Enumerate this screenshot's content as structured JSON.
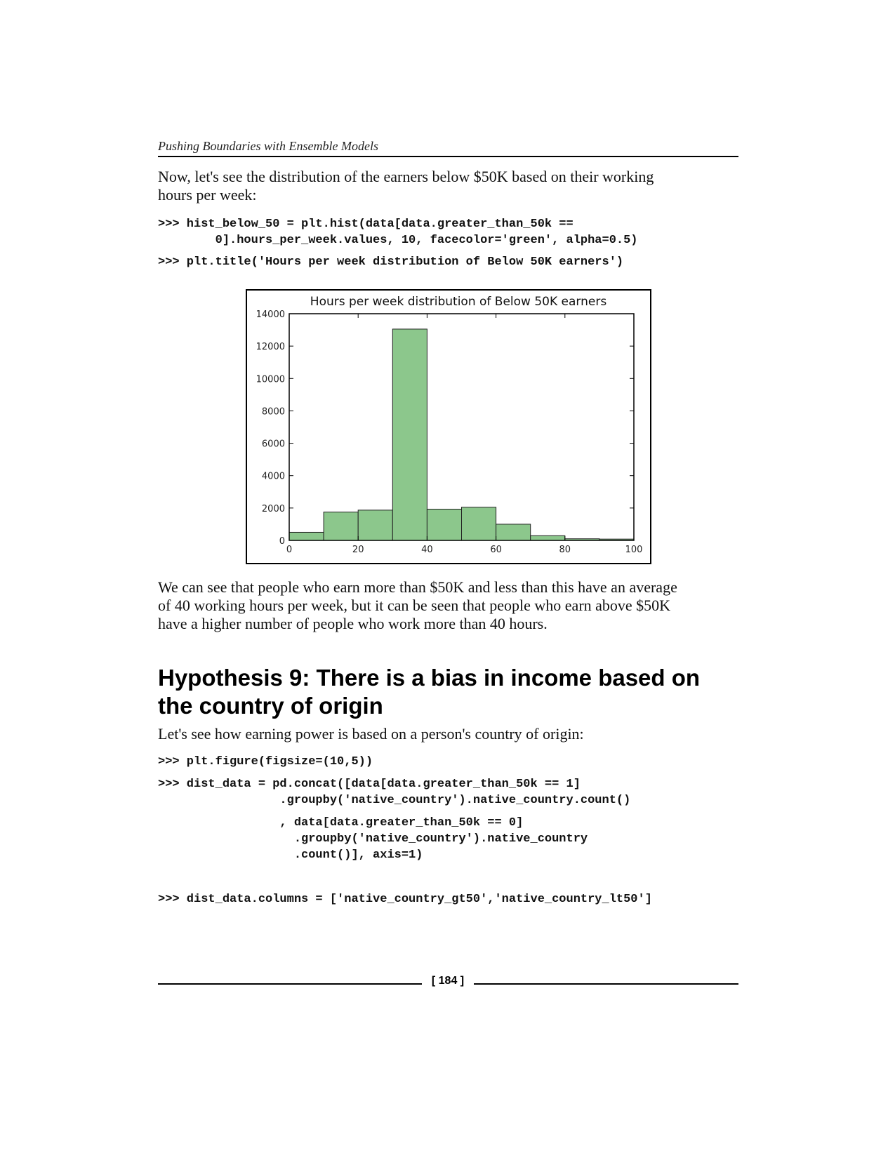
{
  "header": {
    "running_title": "Pushing Boundaries with Ensemble Models"
  },
  "intro_paragraph": {
    "line1": "Now, let's see the distribution of the earners below $50K based on their working",
    "line2": "hours per week:"
  },
  "code_block_1": {
    "line1": ">>> hist_below_50 = plt.hist(data[data.greater_than_50k ==",
    "line2": "        0].hours_per_week.values, 10, facecolor='green', alpha=0.5)",
    "line3": ">>> plt.title('Hours per week distribution of Below 50K earners')"
  },
  "chart_data": {
    "type": "bar",
    "title": "Hours per week distribution of Below 50K earners",
    "xlabel": "",
    "ylabel": "",
    "bin_edges": [
      0,
      10,
      20,
      30,
      40,
      50,
      60,
      70,
      80,
      90,
      100
    ],
    "values": [
      500,
      1750,
      1870,
      13050,
      1930,
      2050,
      1000,
      290,
      100,
      80
    ],
    "xlim": [
      0,
      100
    ],
    "ylim": [
      0,
      14000
    ],
    "xticks": [
      "0",
      "20",
      "40",
      "60",
      "80",
      "100"
    ],
    "yticks": [
      "0",
      "2000",
      "4000",
      "6000",
      "8000",
      "10000",
      "12000",
      "14000"
    ],
    "bar_color": "#8cc78c",
    "bar_edge_color": "#222222",
    "grid": false
  },
  "observation_paragraph": {
    "line1": "We can see that people who earn more than $50K and less than this have an average",
    "line2": "of 40 working hours per week, but it can be seen that people who earn above $50K",
    "line3": "have a higher number of people who work more than 40 hours."
  },
  "section_heading": {
    "line1": "Hypothesis 9: There is a bias in income based on",
    "line2": "the country of origin"
  },
  "section_intro": "Let's see how earning power is based on a person's country of origin:",
  "code_block_2": {
    "line1": ">>> plt.figure(figsize=(10,5))",
    "line2": ">>> dist_data = pd.concat([data[data.greater_than_50k == 1]",
    "line3": "                 .groupby('native_country').native_country.count()",
    "line4": "                 , data[data.greater_than_50k == 0]",
    "line5": "                   .groupby('native_country').native_country",
    "line6": "                   .count()], axis=1)",
    "line7": ">>> dist_data.columns = ['native_country_gt50','native_country_lt50']"
  },
  "footer": {
    "page_number": "[ 184 ]"
  }
}
